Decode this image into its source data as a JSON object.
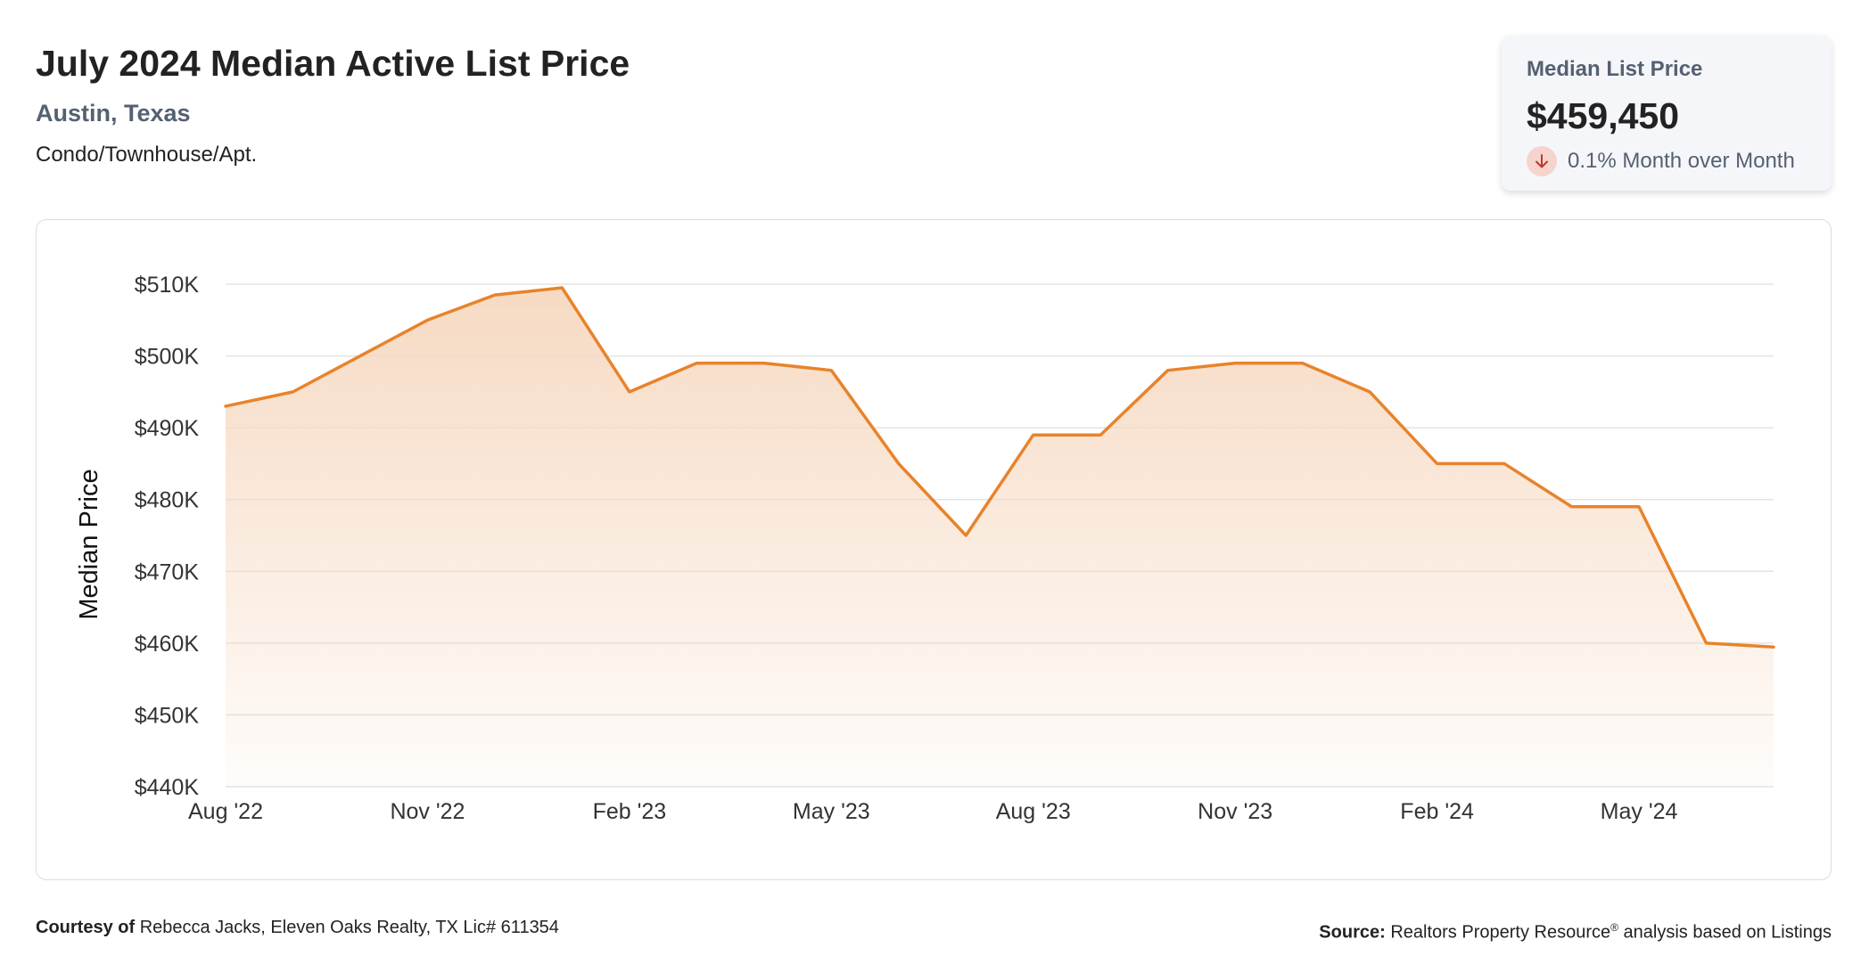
{
  "header": {
    "title": "July 2024 Median Active List Price",
    "location": "Austin, Texas",
    "property_type": "Condo/Townhouse/Apt."
  },
  "stat_card": {
    "label": "Median List Price",
    "value": "$459,450",
    "change": "0.1% Month over Month",
    "direction": "down",
    "icon": "arrow-down-icon"
  },
  "footer": {
    "courtesy_label": "Courtesy of",
    "courtesy_text": "Rebecca Jacks, Eleven Oaks Realty, TX Lic# 611354",
    "source_label": "Source:",
    "source_text_1": "Realtors Property Resource",
    "source_mark": "®",
    "source_text_2": " analysis based on Listings"
  },
  "colors": {
    "line": "#e8832b",
    "area_top": "#f6d8c0",
    "grid": "#e3e3e3",
    "card_bg": "#f5f6f9",
    "down_badge": "#f7d3ce",
    "down_arrow": "#c0392b"
  },
  "chart_data": {
    "type": "area",
    "title": "July 2024 Median Active List Price",
    "ylabel": "Median Price",
    "xlabel": "",
    "ylim": [
      440000,
      510000
    ],
    "y_ticks": [
      440000,
      450000,
      460000,
      470000,
      480000,
      490000,
      500000,
      510000
    ],
    "y_tick_labels": [
      "$440K",
      "$450K",
      "$460K",
      "$470K",
      "$480K",
      "$490K",
      "$500K",
      "$510K"
    ],
    "x": [
      "Aug '22",
      "Sep '22",
      "Oct '22",
      "Nov '22",
      "Dec '22",
      "Jan '23",
      "Feb '23",
      "Mar '23",
      "Apr '23",
      "May '23",
      "Jun '23",
      "Jul '23",
      "Aug '23",
      "Sep '23",
      "Oct '23",
      "Nov '23",
      "Dec '23",
      "Jan '24",
      "Feb '24",
      "Mar '24",
      "Apr '24",
      "May '24",
      "Jun '24",
      "Jul '24"
    ],
    "x_tick_labels": [
      "Aug '22",
      "Nov '22",
      "Feb '23",
      "May '23",
      "Aug '23",
      "Nov '23",
      "Feb '24",
      "May '24"
    ],
    "x_tick_indices": [
      0,
      3,
      6,
      9,
      12,
      15,
      18,
      21
    ],
    "series": [
      {
        "values": [
          493000,
          495000,
          500000,
          505000,
          508500,
          509500,
          495000,
          499000,
          499000,
          498000,
          485000,
          475000,
          489000,
          489000,
          498000,
          499000,
          499000,
          495000,
          485000,
          485000,
          479000,
          479000,
          460000,
          459450
        ]
      }
    ],
    "grid": true,
    "legend": "none"
  }
}
